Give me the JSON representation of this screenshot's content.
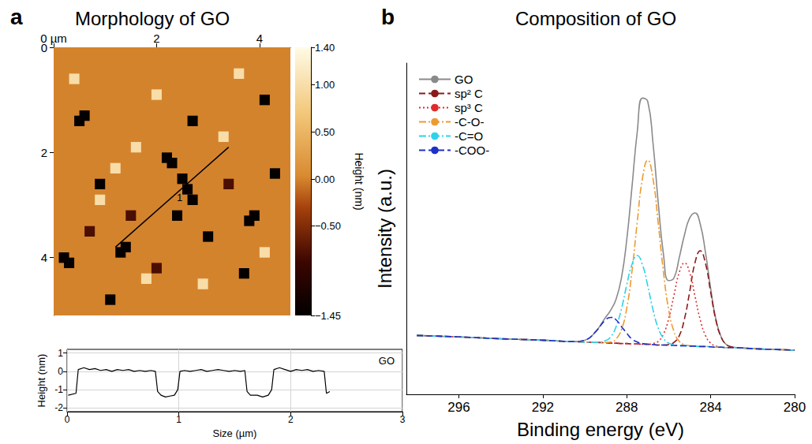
{
  "chart_data": [
    {
      "type": "heatmap",
      "panel_label": "a",
      "title": "Morphology of GO",
      "xlim": [
        0,
        4.6
      ],
      "ylim": [
        0,
        5.1
      ],
      "xticks": [
        {
          "value": 0,
          "label": "0 µm"
        },
        2,
        4
      ],
      "yticks": [
        0,
        2,
        4
      ],
      "background": 0,
      "cell_size": 0.2,
      "cells": [
        [
          2.6,
          2.7,
          -1.4
        ],
        [
          2.5,
          2.5,
          -1.4
        ],
        [
          2.7,
          2.9,
          -1.4
        ],
        [
          2.2,
          2.1,
          -1.4
        ],
        [
          2.3,
          2.2,
          -1.4
        ],
        [
          1.3,
          3.9,
          -1.4
        ],
        [
          1.4,
          3.8,
          -1.4
        ],
        [
          0.2,
          4.0,
          -1.4
        ],
        [
          0.3,
          4.1,
          -1.4
        ],
        [
          3.9,
          3.2,
          -1.4
        ],
        [
          3.8,
          3.3,
          -1.4
        ],
        [
          2.7,
          1.4,
          -1.4
        ],
        [
          0.5,
          1.4,
          -1.4
        ],
        [
          0.6,
          1.3,
          -1.4
        ],
        [
          3.7,
          4.3,
          -1.4
        ],
        [
          4.3,
          2.4,
          -1.4
        ],
        [
          2.4,
          3.2,
          -1.4
        ],
        [
          1.1,
          4.8,
          -1.4
        ],
        [
          3.0,
          3.6,
          -1.4
        ],
        [
          0.9,
          2.6,
          -1.4
        ],
        [
          4.1,
          1.0,
          -1.4
        ],
        [
          1.5,
          3.2,
          -0.8
        ],
        [
          3.4,
          2.6,
          -0.8
        ],
        [
          2.0,
          4.2,
          -0.8
        ],
        [
          0.7,
          3.5,
          -0.8
        ],
        [
          2.0,
          0.9,
          1.0
        ],
        [
          1.6,
          1.9,
          1.0
        ],
        [
          3.3,
          1.7,
          1.0
        ],
        [
          2.9,
          4.5,
          1.0
        ],
        [
          0.9,
          2.9,
          1.0
        ],
        [
          3.6,
          0.5,
          1.0
        ],
        [
          1.2,
          2.3,
          1.0
        ],
        [
          4.1,
          3.9,
          1.0
        ],
        [
          1.8,
          4.4,
          1.0
        ],
        [
          0.4,
          0.6,
          1.0
        ]
      ],
      "colorbar": {
        "title": "Height (nm)",
        "range": [
          -1.45,
          1.4
        ],
        "ticks": [
          {
            "value": 1.4,
            "label": "1.40"
          },
          {
            "value": 1.0,
            "label": "1.00"
          },
          {
            "value": 0.5,
            "label": "0.50"
          },
          {
            "value": 0,
            "label": "0.00"
          },
          {
            "value": -0.5,
            "label": "−0.50"
          },
          {
            "value": -1.45,
            "label": "−1.45"
          }
        ]
      },
      "profile_line": {
        "label": "1",
        "x": [
          1.2,
          3.4
        ],
        "y": [
          3.8,
          1.9
        ],
        "color": "#000000"
      }
    },
    {
      "type": "line",
      "annotation": "GO",
      "xlabel": "Size (µm)",
      "ylabel": "Height (nm)",
      "xlim": [
        0,
        3
      ],
      "ylim": [
        -2.2,
        1.2
      ],
      "xticks": [
        0,
        1,
        2,
        3
      ],
      "yticks": [
        -2,
        -1,
        0,
        1
      ],
      "grid": true,
      "color": "#000000",
      "x": [
        0.01,
        0.08,
        0.1,
        0.15,
        0.2,
        0.25,
        0.3,
        0.35,
        0.4,
        0.45,
        0.5,
        0.55,
        0.6,
        0.65,
        0.7,
        0.75,
        0.79,
        0.81,
        0.84,
        0.88,
        0.92,
        0.96,
        0.99,
        1.01,
        1.05,
        1.1,
        1.15,
        1.2,
        1.25,
        1.3,
        1.35,
        1.4,
        1.45,
        1.5,
        1.55,
        1.59,
        1.61,
        1.64,
        1.7,
        1.75,
        1.8,
        1.83,
        1.85,
        1.9,
        1.95,
        2.0,
        2.05,
        2.1,
        2.15,
        2.2,
        2.25,
        2.3,
        2.32,
        2.35
      ],
      "values": [
        -1.3,
        -1.2,
        0.1,
        0.2,
        0.1,
        0.15,
        0.05,
        0.1,
        0.0,
        0.1,
        0.05,
        0.1,
        0.0,
        0.05,
        0.0,
        0.05,
        0.0,
        -1.1,
        -1.3,
        -1.4,
        -1.35,
        -1.3,
        -1.0,
        0.0,
        0.05,
        0.0,
        0.05,
        0.1,
        0.0,
        0.05,
        0.1,
        0.05,
        0.0,
        0.05,
        0.0,
        0.05,
        -1.1,
        -1.3,
        -1.3,
        -1.4,
        -1.3,
        -1.0,
        0.1,
        0.2,
        0.1,
        0.0,
        0.1,
        0.05,
        0.1,
        0.0,
        0.05,
        0.0,
        -1.2,
        -1.1
      ]
    },
    {
      "type": "line",
      "panel_label": "b",
      "title": "Composition of GO",
      "xlabel": "Binding energy (eV)",
      "ylabel": "Intensity (a.u.)",
      "xlim": [
        298.5,
        280
      ],
      "xticks": [
        296,
        292,
        288,
        284,
        280
      ],
      "ylim": [
        10,
        100
      ],
      "tick_labels": "x",
      "legend": "top-left",
      "x": [
        298,
        296,
        294,
        292,
        291,
        290.5,
        290,
        289.5,
        289,
        288.75,
        288.5,
        288.25,
        288,
        287.75,
        287.5,
        287.25,
        287,
        286.75,
        286.5,
        286.25,
        286,
        285.75,
        285.5,
        285.25,
        285,
        284.75,
        284.5,
        284.25,
        284,
        283.75,
        283.5,
        283.25,
        283,
        282.5,
        282,
        281,
        280
      ],
      "series": [
        {
          "name": "GO",
          "color": "#8a8a8a",
          "line_style": "solid",
          "values": [
            26.0,
            25.6,
            25.1,
            24.7,
            24.4,
            24.3,
            24.7,
            26.9,
            31.0,
            33.0,
            36.0,
            41.7,
            52.0,
            66.4,
            81.3,
            90.5,
            89.6,
            78.3,
            62.1,
            48.0,
            40.9,
            41.6,
            47.1,
            53.3,
            57.9,
            59.3,
            56.3,
            48.6,
            38.7,
            30.3,
            25.6,
            23.5,
            22.9,
            22.6,
            22.4,
            22.2,
            22.0
          ]
        },
        {
          "name": "sp² C",
          "color": "#8b1a1a",
          "line_style": "dashed",
          "values": [
            26.0,
            25.6,
            25.1,
            24.7,
            24.4,
            24.3,
            24.2,
            24.1,
            24.0,
            23.9,
            23.9,
            23.8,
            23.8,
            23.7,
            23.7,
            23.6,
            23.6,
            23.5,
            23.4,
            23.4,
            23.5,
            24.1,
            25.9,
            30.5,
            37.9,
            45.7,
            49.0,
            45.6,
            37.7,
            30.1,
            25.5,
            23.5,
            22.9,
            22.6,
            22.4,
            22.2,
            22.0
          ]
        },
        {
          "name": "sp³ C",
          "color": "#e02b2b",
          "line_style": "dotted",
          "values": [
            26.0,
            25.6,
            25.1,
            24.7,
            24.4,
            24.3,
            24.2,
            24.1,
            24.0,
            23.9,
            23.9,
            23.8,
            23.8,
            23.7,
            23.7,
            23.6,
            23.6,
            23.8,
            24.4,
            26.4,
            30.6,
            36.9,
            43.1,
            45.7,
            43.0,
            36.7,
            30.3,
            26.0,
            23.9,
            23.1,
            22.8,
            22.7,
            22.7,
            22.6,
            22.4,
            22.2,
            22.0
          ]
        },
        {
          "name": "-C-O-",
          "color": "#ee9a2e",
          "line_style": "dashdot",
          "values": [
            26.0,
            25.6,
            25.1,
            24.7,
            24.4,
            24.3,
            24.2,
            24.1,
            24.1,
            24.2,
            25.1,
            27.6,
            33.4,
            43.5,
            56.8,
            68.7,
            73.6,
            68.6,
            56.5,
            43.2,
            32.9,
            27.1,
            24.4,
            23.5,
            23.2,
            23.1,
            23.0,
            23.0,
            22.9,
            22.8,
            22.8,
            22.7,
            22.7,
            22.6,
            22.4,
            22.2,
            22.0
          ]
        },
        {
          "name": "-C=O",
          "color": "#2cd3ea",
          "line_style": "dashdot",
          "values": [
            26.0,
            25.6,
            25.1,
            24.7,
            24.4,
            24.3,
            24.2,
            24.1,
            24.6,
            25.7,
            28.5,
            33.3,
            39.7,
            45.3,
            47.7,
            45.2,
            39.5,
            33.0,
            28.0,
            25.2,
            23.9,
            23.5,
            23.2,
            23.2,
            23.1,
            23.1,
            23.0,
            23.0,
            22.9,
            22.8,
            22.8,
            22.7,
            22.7,
            22.6,
            22.4,
            22.2,
            22.0
          ]
        },
        {
          "name": "-COO-",
          "color": "#1f2fc8",
          "line_style": "dashed",
          "values": [
            26.0,
            25.6,
            25.1,
            24.7,
            24.4,
            24.3,
            24.7,
            26.9,
            30.3,
            30.9,
            30.2,
            28.4,
            26.6,
            25.0,
            24.2,
            23.8,
            23.6,
            23.5,
            23.4,
            23.4,
            23.3,
            23.3,
            23.2,
            23.2,
            23.1,
            23.1,
            23.0,
            23.0,
            22.9,
            22.8,
            22.8,
            22.7,
            22.7,
            22.6,
            22.4,
            22.2,
            22.0
          ]
        }
      ]
    }
  ]
}
